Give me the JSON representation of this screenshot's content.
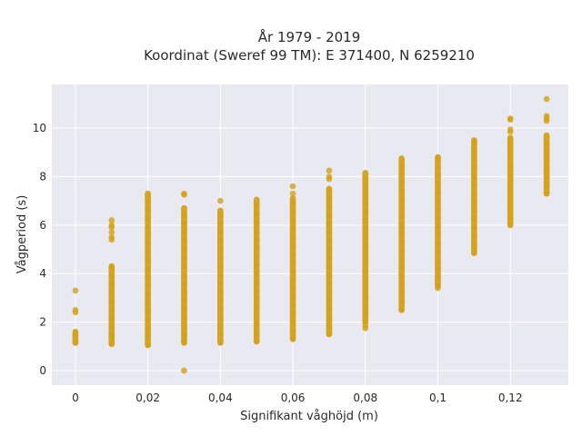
{
  "chart_data": {
    "type": "scatter",
    "title_line1": "År 1979 - 2019",
    "title_line2": "Koordinat (Sweref 99 TM): E 371400, N 6259210",
    "xlabel": "Signifikant våghöjd (m)",
    "ylabel": "Vågperiod (s)",
    "xlim": [
      -0.0065,
      0.136
    ],
    "ylim": [
      -0.6,
      11.8
    ],
    "x_ticks": [
      {
        "value": 0,
        "label": "0"
      },
      {
        "value": 0.02,
        "label": "0,02"
      },
      {
        "value": 0.04,
        "label": "0,04"
      },
      {
        "value": 0.06,
        "label": "0,06"
      },
      {
        "value": 0.08,
        "label": "0,08"
      },
      {
        "value": 0.1,
        "label": "0,1"
      },
      {
        "value": 0.12,
        "label": "0,12"
      }
    ],
    "y_ticks": [
      {
        "value": 0,
        "label": "0"
      },
      {
        "value": 2,
        "label": "2"
      },
      {
        "value": 4,
        "label": "4"
      },
      {
        "value": 6,
        "label": "6"
      },
      {
        "value": 8,
        "label": "8"
      },
      {
        "value": 10,
        "label": "10"
      }
    ],
    "grid": true,
    "marker_color": "#d4a017",
    "background_color": "#e9e9f1",
    "series": [
      {
        "columns": [
          {
            "x": 0,
            "y_min": 1.15,
            "y_max": 1.6,
            "extra": [
              2.4,
              2.5,
              3.3
            ]
          },
          {
            "x": 0.01,
            "y_min": 1.1,
            "y_max": 4.3,
            "extra": [
              5.4,
              5.5,
              5.7,
              5.9,
              6.0,
              6.2
            ]
          },
          {
            "x": 0.02,
            "y_min": 1.05,
            "y_max": 7.3,
            "extra": []
          },
          {
            "x": 0.03,
            "y_min": 1.15,
            "y_max": 6.7,
            "extra": [
              0.0,
              7.25,
              7.3
            ]
          },
          {
            "x": 0.04,
            "y_min": 1.15,
            "y_max": 6.6,
            "extra": [
              7.0
            ]
          },
          {
            "x": 0.05,
            "y_min": 1.2,
            "y_max": 7.05,
            "extra": []
          },
          {
            "x": 0.06,
            "y_min": 1.3,
            "y_max": 7.1,
            "extra": [
              7.3,
              7.6
            ]
          },
          {
            "x": 0.07,
            "y_min": 1.5,
            "y_max": 7.5,
            "extra": [
              7.9,
              8.0,
              8.25
            ]
          },
          {
            "x": 0.08,
            "y_min": 2.0,
            "y_max": 8.15,
            "extra": [
              1.75,
              1.85
            ]
          },
          {
            "x": 0.09,
            "y_min": 2.5,
            "y_max": 8.75,
            "extra": []
          },
          {
            "x": 0.1,
            "y_min": 3.5,
            "y_max": 8.8,
            "extra": [
              3.4
            ]
          },
          {
            "x": 0.11,
            "y_min": 4.85,
            "y_max": 9.5,
            "extra": []
          },
          {
            "x": 0.12,
            "y_min": 6.0,
            "y_max": 9.6,
            "extra": [
              9.85,
              9.95,
              10.35,
              10.4
            ]
          },
          {
            "x": 0.13,
            "y_min": 7.3,
            "y_max": 9.7,
            "extra": [
              10.3,
              10.4,
              10.5,
              11.2
            ]
          }
        ]
      }
    ]
  }
}
